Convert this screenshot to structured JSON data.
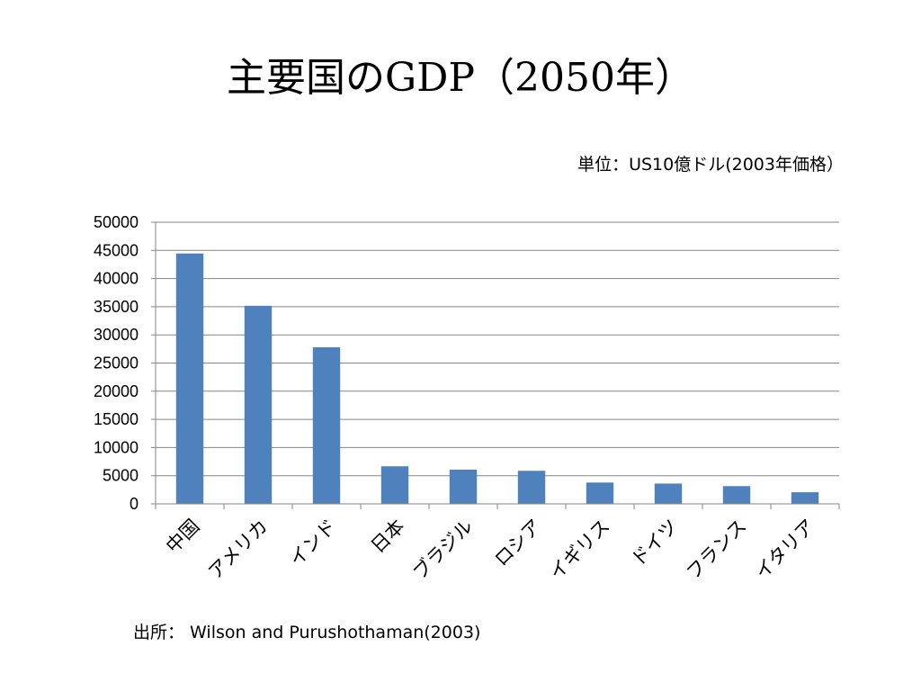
{
  "slide": {
    "title": "主要国のGDP（2050年）",
    "unit_note": "単位：US10億ドル(2003年価格）",
    "source_note": "出所： Wilson and Purushothaman(2003)"
  },
  "chart_data": {
    "type": "bar",
    "categories": [
      "中国",
      "アメリカ",
      "インド",
      "日本",
      "ブラジル",
      "ロシア",
      "イギリス",
      "ドイツ",
      "フランス",
      "イタリア"
    ],
    "values": [
      44453,
      35165,
      27803,
      6673,
      6074,
      5870,
      3782,
      3603,
      3148,
      2061
    ],
    "ylim": [
      0,
      50000
    ],
    "yticks": [
      0,
      5000,
      10000,
      15000,
      20000,
      25000,
      30000,
      35000,
      40000,
      45000,
      50000
    ],
    "grid": true,
    "legend": "none",
    "bar_color": "#4F81BD",
    "grid_color": "#868686"
  }
}
